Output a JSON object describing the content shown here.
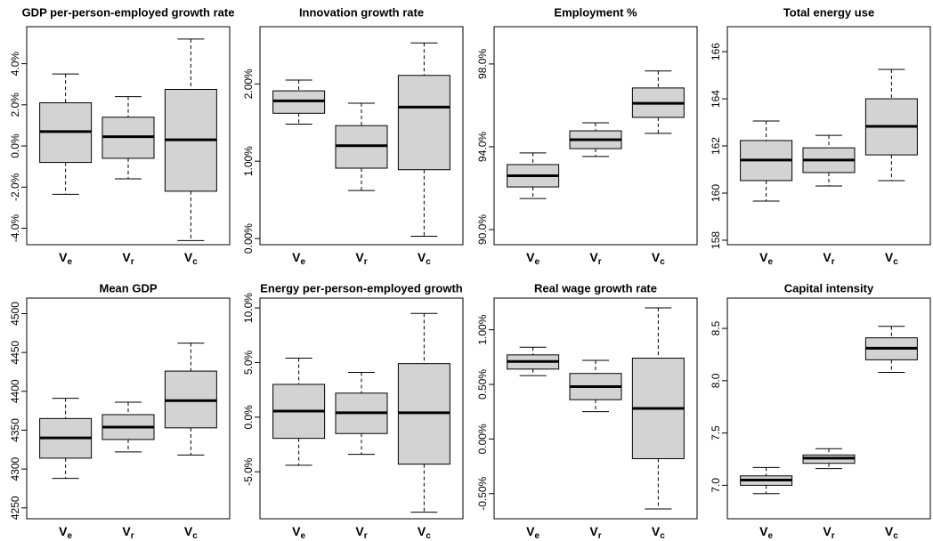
{
  "chart_data": [
    {
      "type": "box",
      "title": "GDP per-person-employed growth rate",
      "categories": [
        "Ve",
        "Vr",
        "Vc"
      ],
      "color": "#d3d3d3",
      "stats": [
        {
          "low": -2.35,
          "q1": -0.8,
          "median": 0.7,
          "q3": 2.1,
          "high": 3.5
        },
        {
          "low": -1.6,
          "q1": -0.6,
          "median": 0.45,
          "q3": 1.4,
          "high": 2.4
        },
        {
          "low": -4.6,
          "q1": -2.2,
          "median": 0.3,
          "q3": 2.75,
          "high": 5.2
        }
      ],
      "ylim": [
        -4.8,
        5.8
      ],
      "yticks": [
        {
          "value": -4,
          "label": "-4.0%"
        },
        {
          "value": -2,
          "label": "-2.0%"
        },
        {
          "value": 0,
          "label": "0.0%"
        },
        {
          "value": 2,
          "label": "2.0%"
        },
        {
          "value": 4,
          "label": "4.0%"
        }
      ]
    },
    {
      "type": "box",
      "title": "Innovation growth rate",
      "categories": [
        "Ve",
        "Vr",
        "Vc"
      ],
      "color": "#d3d3d3",
      "stats": [
        {
          "low": 1.48,
          "q1": 1.62,
          "median": 1.78,
          "q3": 1.91,
          "high": 2.05
        },
        {
          "low": 0.62,
          "q1": 0.91,
          "median": 1.2,
          "q3": 1.46,
          "high": 1.75
        },
        {
          "low": 0.03,
          "q1": 0.89,
          "median": 1.7,
          "q3": 2.11,
          "high": 2.53
        }
      ],
      "ylim": [
        -0.08,
        2.74
      ],
      "yticks": [
        {
          "value": 0,
          "label": "0.00%"
        },
        {
          "value": 1,
          "label": "1.00%"
        },
        {
          "value": 2,
          "label": "2.00%"
        }
      ]
    },
    {
      "type": "box",
      "title": "Employment %",
      "categories": [
        "Ve",
        "Vr",
        "Vc"
      ],
      "color": "#d3d3d3",
      "stats": [
        {
          "low": 91.5,
          "q1": 92.06,
          "median": 92.6,
          "q3": 93.14,
          "high": 93.7
        },
        {
          "low": 93.53,
          "q1": 93.91,
          "median": 94.34,
          "q3": 94.77,
          "high": 95.16
        },
        {
          "low": 94.65,
          "q1": 95.42,
          "median": 96.1,
          "q3": 96.84,
          "high": 97.66
        }
      ],
      "ylim": [
        89.27,
        99.8
      ],
      "yticks": [
        {
          "value": 90,
          "label": "90.0%"
        },
        {
          "value": 94,
          "label": "94.0%"
        },
        {
          "value": 98,
          "label": "98.0%"
        }
      ]
    },
    {
      "type": "box",
      "title": "Total energy use",
      "categories": [
        "Ve",
        "Vr",
        "Vc"
      ],
      "color": "#d3d3d3",
      "stats": [
        {
          "low": 159.66,
          "q1": 160.53,
          "median": 161.4,
          "q3": 162.23,
          "high": 163.06
        },
        {
          "low": 160.3,
          "q1": 160.87,
          "median": 161.4,
          "q3": 161.92,
          "high": 162.45
        },
        {
          "low": 160.53,
          "q1": 161.62,
          "median": 162.83,
          "q3": 164.0,
          "high": 165.25
        }
      ],
      "ylim": [
        157.81,
        167.06
      ],
      "yticks": [
        158,
        160,
        162,
        164,
        166
      ]
    },
    {
      "type": "box",
      "title": "Mean GDP",
      "categories": [
        "Ve",
        "Vr",
        "Vc"
      ],
      "color": "#d3d3d3",
      "stats": [
        {
          "low": 4288,
          "q1": 4314,
          "median": 4340,
          "q3": 4365,
          "high": 4391
        },
        {
          "low": 4322,
          "q1": 4338,
          "median": 4354,
          "q3": 4370,
          "high": 4386
        },
        {
          "low": 4318,
          "q1": 4353,
          "median": 4388,
          "q3": 4426,
          "high": 4462
        }
      ],
      "ylim": [
        4236,
        4520
      ],
      "yticks": [
        4250,
        4300,
        4350,
        4400,
        4450,
        4500
      ]
    },
    {
      "type": "box",
      "title": "Energy per-person-employed growth",
      "categories": [
        "Ve",
        "Vr",
        "Vc"
      ],
      "color": "#d3d3d3",
      "stats": [
        {
          "low": -4.4,
          "q1": -1.94,
          "median": 0.56,
          "q3": 3.0,
          "high": 5.4
        },
        {
          "low": -3.4,
          "q1": -1.5,
          "median": 0.4,
          "q3": 2.2,
          "high": 4.1
        },
        {
          "low": -8.7,
          "q1": -4.3,
          "median": 0.4,
          "q3": 4.9,
          "high": 9.5
        }
      ],
      "ylim": [
        -9.3,
        10.9
      ],
      "yticks": [
        {
          "value": -5,
          "label": "-5.0%"
        },
        {
          "value": 0,
          "label": "0.0%"
        },
        {
          "value": 5,
          "label": "5.0%"
        },
        {
          "value": 10,
          "label": "10.0%"
        }
      ]
    },
    {
      "type": "box",
      "title": "Real wage growth rate",
      "categories": [
        "Ve",
        "Vr",
        "Vc"
      ],
      "color": "#d3d3d3",
      "stats": [
        {
          "low": 0.58,
          "q1": 0.64,
          "median": 0.71,
          "q3": 0.77,
          "high": 0.84
        },
        {
          "low": 0.25,
          "q1": 0.36,
          "median": 0.48,
          "q3": 0.6,
          "high": 0.72
        },
        {
          "low": -0.64,
          "q1": -0.18,
          "median": 0.28,
          "q3": 0.74,
          "high": 1.2
        }
      ],
      "ylim": [
        -0.73,
        1.29
      ],
      "yticks": [
        {
          "value": -0.5,
          "label": "-0.50%"
        },
        {
          "value": 0,
          "label": "0.00%"
        },
        {
          "value": 0.5,
          "label": "0.50%"
        },
        {
          "value": 1,
          "label": "1.00%"
        }
      ]
    },
    {
      "type": "box",
      "title": "Capital intensity",
      "categories": [
        "Ve",
        "Vr",
        "Vc"
      ],
      "color": "#d3d3d3",
      "stats": [
        {
          "low": 6.92,
          "q1": 7.0,
          "median": 7.05,
          "q3": 7.09,
          "high": 7.17
        },
        {
          "low": 7.16,
          "q1": 7.21,
          "median": 7.26,
          "q3": 7.29,
          "high": 7.35
        },
        {
          "low": 8.08,
          "q1": 8.2,
          "median": 8.31,
          "q3": 8.41,
          "high": 8.52
        }
      ],
      "ylim": [
        6.68,
        8.79
      ],
      "yticks": [
        {
          "value": 7,
          "label": "7.0"
        },
        7.5,
        {
          "value": 8,
          "label": "8.0"
        },
        8.5
      ]
    }
  ]
}
